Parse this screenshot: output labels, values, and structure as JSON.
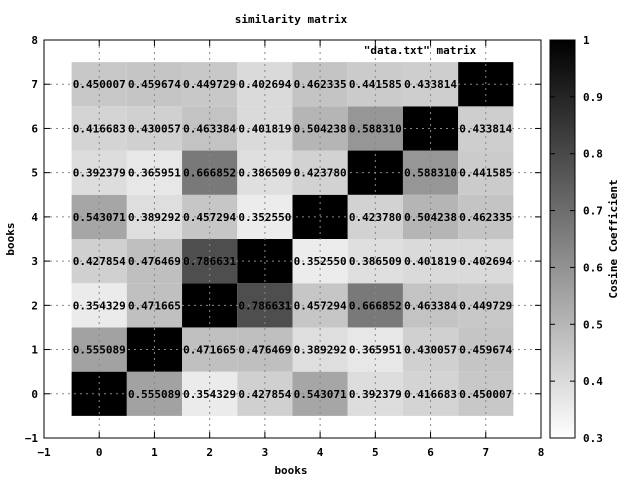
{
  "chart_data": {
    "type": "heatmap",
    "title": "similarity matrix",
    "annotation": "\"data.txt\"  matrix",
    "xlabel": "books",
    "ylabel": "books",
    "xlim": [
      -1,
      8
    ],
    "ylim": [
      -1,
      8
    ],
    "xticks": [
      "−1",
      "0",
      "1",
      "2",
      "3",
      "4",
      "5",
      "6",
      "7",
      "8"
    ],
    "yticks": [
      "−1",
      "0",
      "1",
      "2",
      "3",
      "4",
      "5",
      "6",
      "7",
      "8"
    ],
    "grid": true,
    "colorbar": {
      "label": "Cosine Coefficient",
      "range": [
        0.3,
        1
      ],
      "ticks": [
        "0.3",
        "0.4",
        "0.5",
        "0.6",
        "0.7",
        "0.8",
        "0.9",
        "1"
      ],
      "low_color": "#ffffff",
      "high_color": "#000000",
      "placement": "right"
    },
    "matrix": [
      [
        1,
        0.555089,
        0.354329,
        0.427854,
        0.543071,
        0.392379,
        0.416683,
        0.450007
      ],
      [
        0.555089,
        1,
        0.471665,
        0.476469,
        0.389292,
        0.365951,
        0.430057,
        0.459674
      ],
      [
        0.354329,
        0.471665,
        1,
        0.786631,
        0.457294,
        0.666852,
        0.463384,
        0.449729
      ],
      [
        0.427854,
        0.476469,
        0.786631,
        1,
        0.35255,
        0.386509,
        0.401819,
        0.402694
      ],
      [
        0.543071,
        0.389292,
        0.457294,
        0.35255,
        1,
        0.42378,
        0.504238,
        0.462335
      ],
      [
        0.392379,
        0.365951,
        0.666852,
        0.386509,
        0.42378,
        1,
        0.58831,
        0.441585
      ],
      [
        0.416683,
        0.430057,
        0.463384,
        0.401819,
        0.504238,
        0.58831,
        1,
        0.433814
      ],
      [
        0.450007,
        0.459674,
        0.449729,
        0.402694,
        0.462335,
        0.441585,
        0.433814,
        1
      ]
    ],
    "cell_labels": [
      [
        "",
        "0.555089",
        "0.354329",
        "0.427854",
        "0.543071",
        "0.392379",
        "0.416683",
        "0.450007"
      ],
      [
        "0.555089",
        "",
        "0.471665",
        "0.476469",
        "0.389292",
        "0.365951",
        "0.430057",
        "0.459674"
      ],
      [
        "0.354329",
        "0.471665",
        "",
        "0.786631",
        "0.457294",
        "0.666852",
        "0.463384",
        "0.449729"
      ],
      [
        "0.427854",
        "0.476469",
        "0.786631",
        "",
        "0.352550",
        "0.386509",
        "0.401819",
        "0.402694"
      ],
      [
        "0.543071",
        "0.389292",
        "0.457294",
        "0.352550",
        "",
        "0.423780",
        "0.504238",
        "0.462335"
      ],
      [
        "0.392379",
        "0.365951",
        "0.666852",
        "0.386509",
        "0.423780",
        "",
        "0.588310",
        "0.441585"
      ],
      [
        "0.416683",
        "0.430057",
        "0.463384",
        "0.401819",
        "0.504238",
        "0.588310",
        "",
        "0.433814"
      ],
      [
        "0.450007",
        "0.459674",
        "0.449729",
        "0.402694",
        "0.462335",
        "0.441585",
        "0.433814",
        ""
      ]
    ]
  }
}
